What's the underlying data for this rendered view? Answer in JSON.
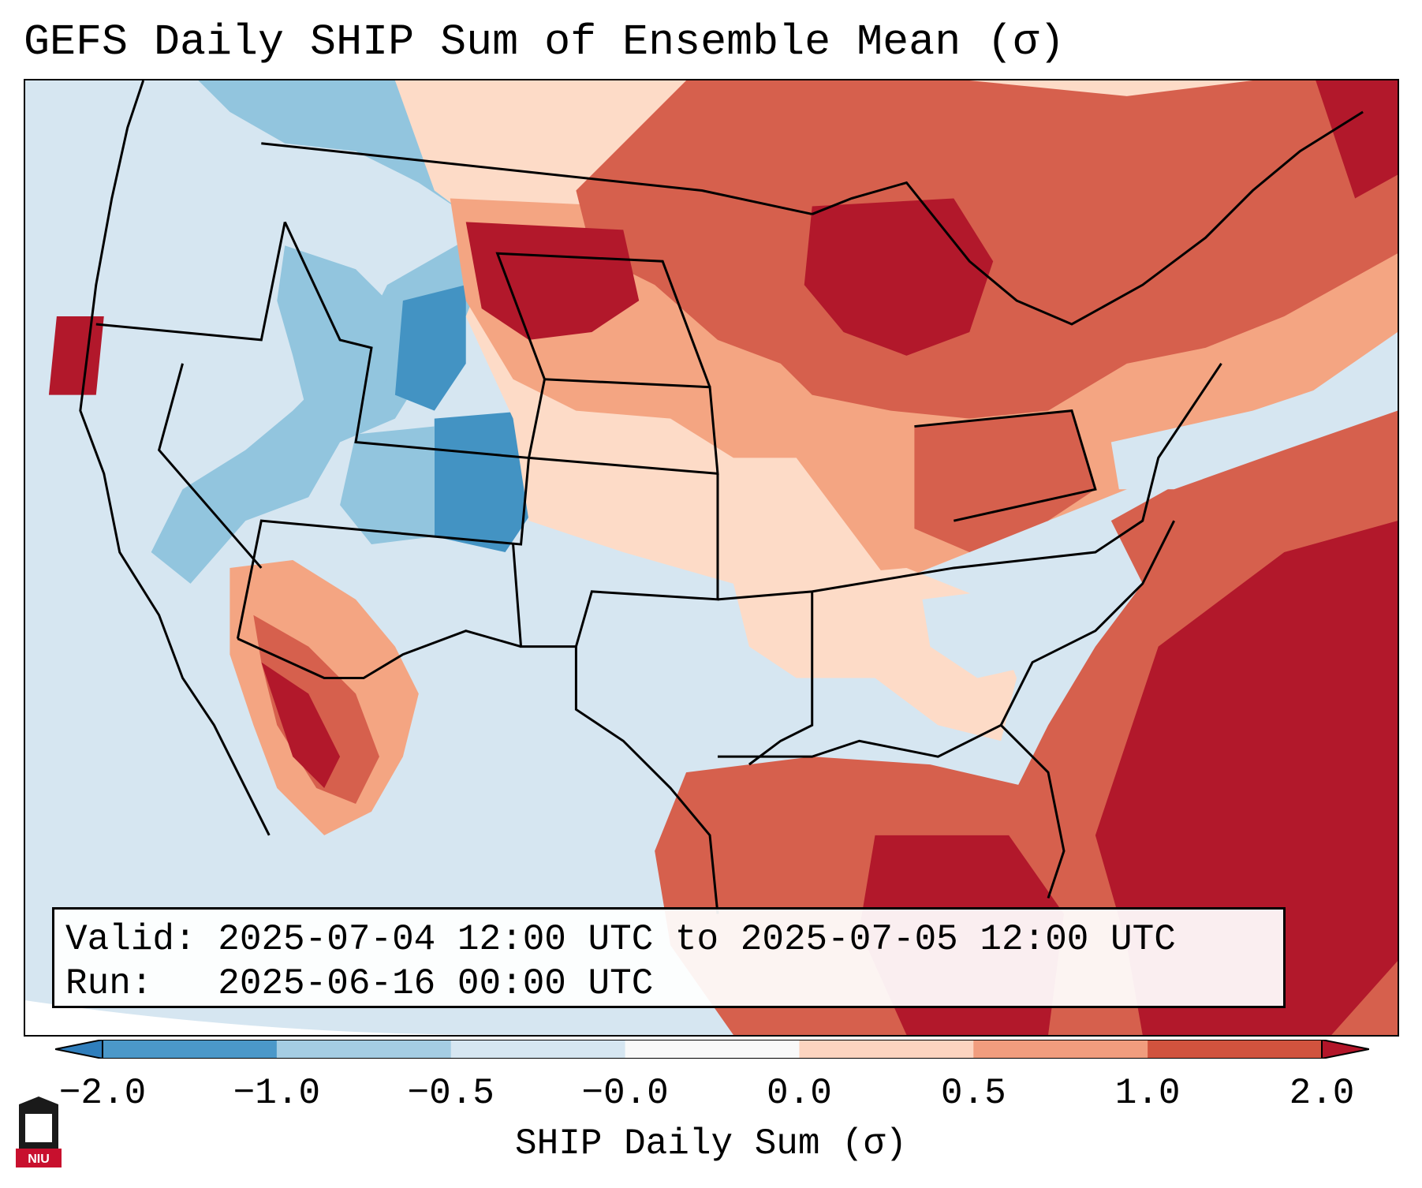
{
  "title": "GEFS Daily SHIP Sum of Ensemble Mean (σ)",
  "info": {
    "valid": "Valid: 2025-07-04 12:00 UTC to 2025-07-05 12:00 UTC",
    "run": "Run:   2025-06-16 00:00 UTC"
  },
  "colorbar": {
    "label": "SHIP Daily Sum (σ)",
    "ticks": [
      "−2.0",
      "−1.0",
      "−0.5",
      "−0.0",
      "0.0",
      "0.5",
      "1.0",
      "2.0"
    ],
    "colors": [
      "#2f7ebc",
      "#4b98c9",
      "#a5cde3",
      "#d6e6f1",
      "#f9f9f9",
      "#fcd4c0",
      "#f19d7e",
      "#d1533e",
      "#b31529"
    ],
    "extend": "both"
  },
  "map": {
    "region": "Contiguous United States",
    "color_scale": {
      "strong_negative": "#4393c3",
      "moderate_negative": "#92c5de",
      "weak_negative": "#d1e5f0",
      "weak_positive": "#fddbc7",
      "moderate_positive": "#f4a582",
      "strong_positive": "#d6604d",
      "very_strong_positive": "#b2182b"
    }
  },
  "logo": {
    "text": "NIU"
  }
}
